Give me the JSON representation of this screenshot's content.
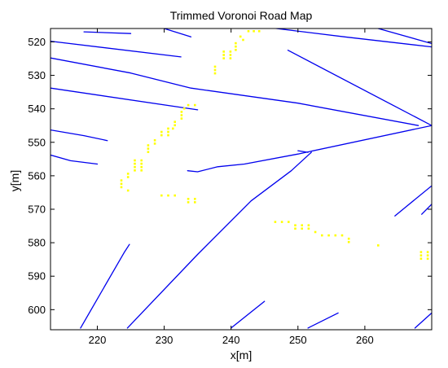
{
  "chart_data": {
    "type": "line",
    "title": "Trimmed Voronoi Road Map",
    "xlabel": "x[m]",
    "ylabel": "y[m]",
    "xlim": [
      213,
      270
    ],
    "ylim": [
      516,
      606
    ],
    "y_reversed": true,
    "grid": false,
    "legend": "none",
    "x_ticks": [
      220,
      230,
      240,
      250,
      260
    ],
    "y_ticks": [
      520,
      530,
      540,
      550,
      560,
      570,
      580,
      590,
      600
    ],
    "colors": {
      "road": "#0000ee",
      "point": "#ffff00"
    },
    "series": [
      {
        "kind": "road-edges",
        "segments": [
          [
            [
              213.0,
              519.8
            ],
            [
              232.5,
              524.5
            ]
          ],
          [
            [
              213.0,
              524.8
            ],
            [
              225.0,
              529.3
            ],
            [
              234.0,
              533.8
            ],
            [
              250.0,
              538.3
            ],
            [
              268.0,
              545.0
            ]
          ],
          [
            [
              213.0,
              533.8
            ],
            [
              235.0,
              540.3
            ]
          ],
          [
            [
              213.0,
              546.3
            ],
            [
              218.0,
              548.0
            ],
            [
              221.5,
              549.5
            ]
          ],
          [
            [
              213.0,
              553.8
            ],
            [
              216.0,
              555.5
            ],
            [
              220.0,
              556.5
            ]
          ],
          [
            [
              218.0,
              517.0
            ],
            [
              225.0,
              517.5
            ]
          ],
          [
            [
              230.0,
              516.0
            ],
            [
              234.0,
              518.5
            ]
          ],
          [
            [
              246.0,
              515.8
            ],
            [
              257.0,
              518.5
            ],
            [
              270.0,
              521.5
            ]
          ],
          [
            [
              262.0,
              516.0
            ],
            [
              270.0,
              520.5
            ]
          ],
          [
            [
              248.5,
              522.5
            ],
            [
              270.0,
              545.0
            ]
          ],
          [
            [
              233.5,
              558.5
            ],
            [
              235.0,
              558.8
            ],
            [
              238.0,
              557.3
            ],
            [
              242.0,
              556.5
            ],
            [
              250.0,
              553.5
            ],
            [
              270.0,
              545.0
            ]
          ],
          [
            [
              250.0,
              552.5
            ],
            [
              251.5,
              553.0
            ]
          ],
          [
            [
              224.5,
              605.5
            ],
            [
              235.0,
              583.5
            ],
            [
              243.0,
              567.5
            ],
            [
              249.0,
              558.5
            ],
            [
              252.0,
              553.0
            ]
          ],
          [
            [
              217.5,
              605.5
            ],
            [
              224.0,
              583.0
            ],
            [
              224.8,
              580.5
            ]
          ],
          [
            [
              240.0,
              605.5
            ],
            [
              245.0,
              597.5
            ]
          ],
          [
            [
              251.5,
              605.5
            ],
            [
              256.0,
              601.0
            ]
          ],
          [
            [
              264.5,
              572.0
            ],
            [
              270.0,
              563.0
            ]
          ],
          [
            [
              268.5,
              571.5
            ],
            [
              270.0,
              568.5
            ]
          ],
          [
            [
              267.5,
              605.5
            ],
            [
              270.0,
              601.0
            ]
          ]
        ]
      },
      {
        "kind": "points",
        "points": [
          [
            242.6,
            515.8
          ],
          [
            243.4,
            515.8
          ],
          [
            244.2,
            515.8
          ],
          [
            242.6,
            516.8
          ],
          [
            243.4,
            516.8
          ],
          [
            244.2,
            516.8
          ],
          [
            241.4,
            518.4
          ],
          [
            241.8,
            519.4
          ],
          [
            240.7,
            520.4
          ],
          [
            240.7,
            521.4
          ],
          [
            240.7,
            522.4
          ],
          [
            239.9,
            522.9
          ],
          [
            238.9,
            522.9
          ],
          [
            238.9,
            523.9
          ],
          [
            239.9,
            523.9
          ],
          [
            238.9,
            524.9
          ],
          [
            239.9,
            524.9
          ],
          [
            237.6,
            527.4
          ],
          [
            237.6,
            528.4
          ],
          [
            237.6,
            529.4
          ],
          [
            233.6,
            538.9
          ],
          [
            234.6,
            538.9
          ],
          [
            233.0,
            539.9
          ],
          [
            232.6,
            540.9
          ],
          [
            232.6,
            541.9
          ],
          [
            232.6,
            542.9
          ],
          [
            231.6,
            543.9
          ],
          [
            231.6,
            544.9
          ],
          [
            230.6,
            545.9
          ],
          [
            231.3,
            545.9
          ],
          [
            229.6,
            546.9
          ],
          [
            230.6,
            546.9
          ],
          [
            229.6,
            547.9
          ],
          [
            230.6,
            547.9
          ],
          [
            228.6,
            549.4
          ],
          [
            228.6,
            550.4
          ],
          [
            227.6,
            550.9
          ],
          [
            227.6,
            551.9
          ],
          [
            227.6,
            552.9
          ],
          [
            225.6,
            555.4
          ],
          [
            226.6,
            555.4
          ],
          [
            225.6,
            556.4
          ],
          [
            226.6,
            556.4
          ],
          [
            225.6,
            557.4
          ],
          [
            226.6,
            557.4
          ],
          [
            225.6,
            558.4
          ],
          [
            226.6,
            558.4
          ],
          [
            224.6,
            559.4
          ],
          [
            224.6,
            560.4
          ],
          [
            223.6,
            561.4
          ],
          [
            223.6,
            562.4
          ],
          [
            223.6,
            563.4
          ],
          [
            224.6,
            564.4
          ],
          [
            229.6,
            565.9
          ],
          [
            230.6,
            565.9
          ],
          [
            231.6,
            565.9
          ],
          [
            233.6,
            566.9
          ],
          [
            234.6,
            566.9
          ],
          [
            233.6,
            567.9
          ],
          [
            234.6,
            567.9
          ],
          [
            246.6,
            573.8
          ],
          [
            247.6,
            573.8
          ],
          [
            248.6,
            573.8
          ],
          [
            249.6,
            574.8
          ],
          [
            250.6,
            574.8
          ],
          [
            251.6,
            574.8
          ],
          [
            249.6,
            575.8
          ],
          [
            250.6,
            575.8
          ],
          [
            251.6,
            575.8
          ],
          [
            252.6,
            576.8
          ],
          [
            253.6,
            577.8
          ],
          [
            254.6,
            577.8
          ],
          [
            255.6,
            577.8
          ],
          [
            256.6,
            577.8
          ],
          [
            257.6,
            578.8
          ],
          [
            257.6,
            579.8
          ],
          [
            262.0,
            580.8
          ],
          [
            268.4,
            582.8
          ],
          [
            269.4,
            582.8
          ],
          [
            268.4,
            583.8
          ],
          [
            269.4,
            583.8
          ],
          [
            268.4,
            584.8
          ],
          [
            269.4,
            584.8
          ]
        ]
      }
    ]
  }
}
